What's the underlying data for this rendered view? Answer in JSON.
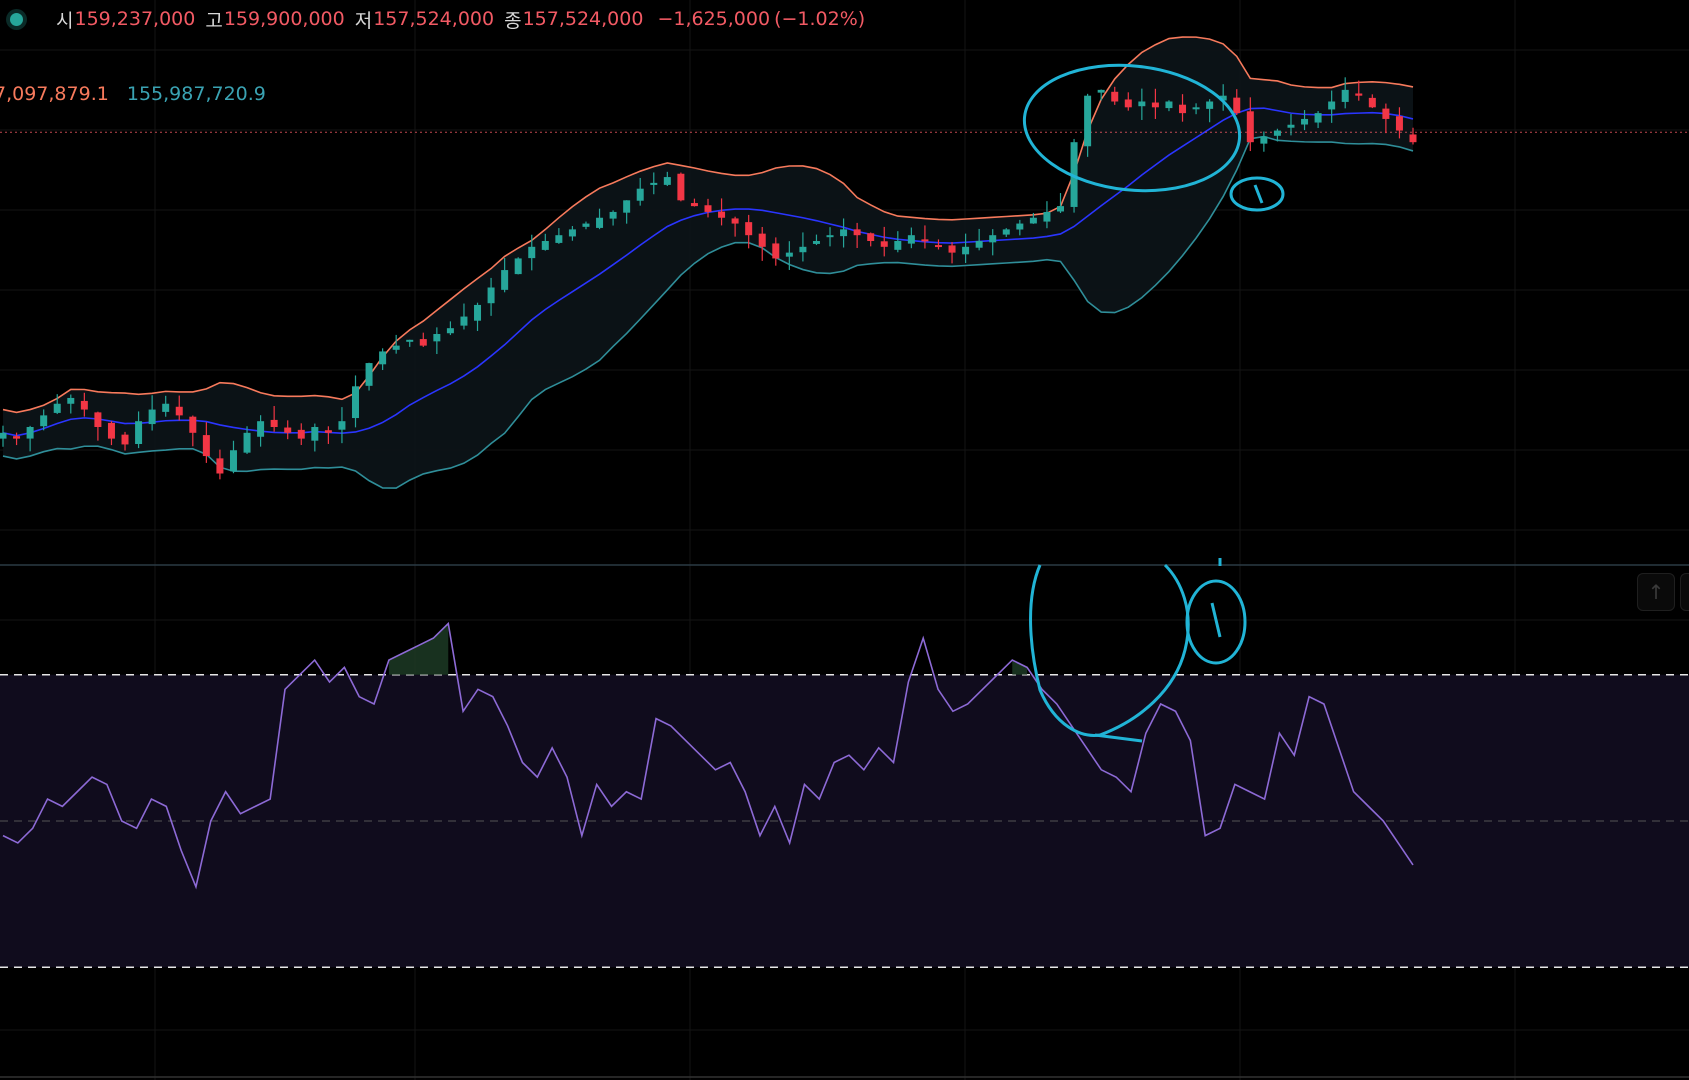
{
  "header": {
    "open_label": "시",
    "open": "159,237,000",
    "high_label": "고",
    "high": "159,900,000",
    "low_label": "저",
    "low": "157,524,000",
    "close_label": "종",
    "close": "157,524,000",
    "change": "−1,625,000",
    "change_pct": "(−1.02%)"
  },
  "bollinger": {
    "upper": "7,097,879.1",
    "lower": "155,987,720.9"
  },
  "colors": {
    "up": "#26a69a",
    "down": "#f23645",
    "upper_band": "#f77a5c",
    "basis": "#2a35ff",
    "lower_band": "#2f8e99",
    "rsi_line": "#8d6ad6",
    "annotation": "#21b4d6"
  },
  "icons": {
    "status": "status-dot-icon",
    "scroll": "arrow-up-icon"
  },
  "chart_data": [
    {
      "type": "candlestick",
      "indicator": "bollinger_bands",
      "price_values": "approximate relative shape read from the figure",
      "closes": [
        40,
        39,
        41,
        43,
        45,
        46,
        44,
        41,
        39,
        38,
        42,
        44,
        45,
        43,
        40,
        36,
        33,
        37,
        40,
        42,
        41,
        40,
        39,
        41,
        40,
        42,
        48,
        52,
        54,
        55,
        56,
        55,
        57,
        58,
        60,
        62,
        65,
        68,
        70,
        72,
        73,
        74,
        75,
        76,
        77,
        78,
        80,
        82,
        83,
        84,
        80,
        79,
        78,
        77,
        76,
        74,
        72,
        70,
        71,
        72,
        73,
        74,
        75,
        74,
        73,
        72,
        73,
        74,
        73,
        72,
        71,
        72,
        73,
        74,
        75,
        76,
        77,
        78,
        79,
        90,
        98,
        99,
        97,
        96,
        97,
        96,
        97,
        95,
        96,
        97,
        98,
        95,
        90,
        91,
        92,
        93,
        94,
        95,
        97,
        99,
        98,
        96,
        94,
        92,
        90
      ]
    },
    {
      "type": "line",
      "indicator": "rsi",
      "levels": [
        70,
        50,
        30
      ],
      "values": [
        48,
        47,
        49,
        53,
        52,
        54,
        56,
        55,
        50,
        49,
        53,
        52,
        46,
        41,
        50,
        54,
        51,
        52,
        53,
        68,
        70,
        72,
        69,
        71,
        67,
        66,
        72,
        73,
        74,
        75,
        77,
        65,
        68,
        67,
        63,
        58,
        56,
        60,
        56,
        48,
        55,
        52,
        54,
        53,
        64,
        63,
        61,
        59,
        57,
        58,
        54,
        48,
        52,
        47,
        55,
        53,
        58,
        59,
        57,
        60,
        58,
        69,
        75,
        68,
        65,
        66,
        68,
        70,
        72,
        71,
        68,
        66,
        63,
        60,
        57,
        56,
        54,
        62,
        66,
        65,
        61,
        48,
        49,
        55,
        54,
        53,
        62,
        59,
        67,
        66,
        60,
        54,
        52,
        50,
        47,
        44
      ]
    }
  ]
}
